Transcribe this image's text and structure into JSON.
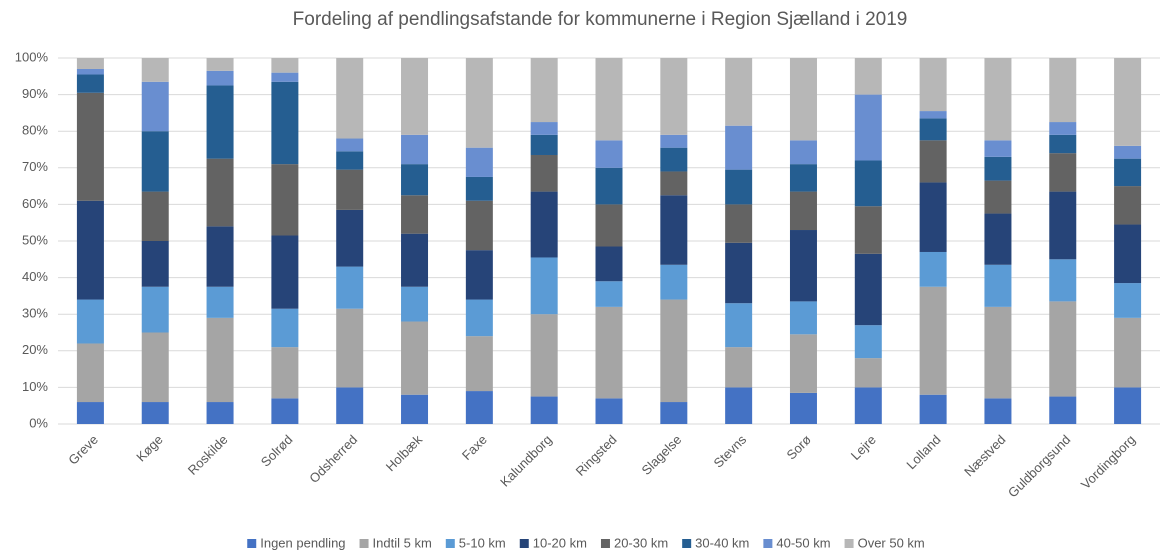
{
  "chart_data": {
    "type": "stacked_bar",
    "title": "Fordeling af pendlingsafstande for kommunerne i Region Sjælland i 2019",
    "categories": [
      "Greve",
      "Køge",
      "Roskilde",
      "Solrød",
      "Odsherred",
      "Holbæk",
      "Faxe",
      "Kalundborg",
      "Ringsted",
      "Slagelse",
      "Stevns",
      "Sorø",
      "Lejre",
      "Lolland",
      "Næstved",
      "Guldborgsund",
      "Vordingborg"
    ],
    "series": [
      {
        "name": "Ingen pendling",
        "color": "#4472c4",
        "values": [
          6,
          6,
          6,
          7,
          10,
          8,
          9,
          7.5,
          7,
          6,
          10,
          8.5,
          10,
          8,
          7,
          7.5,
          10
        ]
      },
      {
        "name": "Indtil 5 km",
        "color": "#a5a5a5",
        "values": [
          16,
          19,
          23,
          14,
          21.5,
          20,
          15,
          22.5,
          25,
          28,
          11,
          16,
          8,
          29.5,
          25,
          26,
          19
        ]
      },
      {
        "name": "5-10 km",
        "color": "#5b9bd5",
        "values": [
          12,
          12.5,
          8.5,
          10.5,
          11.5,
          9.5,
          10,
          15.5,
          7,
          9.5,
          12,
          9,
          9,
          9.5,
          11.5,
          11.5,
          9.5
        ]
      },
      {
        "name": "10-20 km",
        "color": "#264478",
        "values": [
          27,
          12.5,
          16.5,
          20,
          15.5,
          14.5,
          13.5,
          18,
          9.5,
          19,
          16.5,
          19.5,
          19.5,
          19,
          14,
          18.5,
          16
        ]
      },
      {
        "name": "20-30 km",
        "color": "#636363",
        "values": [
          29.5,
          13.5,
          18.5,
          19.5,
          11,
          10.5,
          13.5,
          10,
          11.5,
          6.5,
          10.5,
          10.5,
          13,
          11.5,
          9,
          10.5,
          10.5
        ]
      },
      {
        "name": "30-40 km",
        "color": "#255e91",
        "values": [
          5,
          16.5,
          20,
          22.5,
          5,
          8.5,
          6.5,
          5.5,
          10,
          6.5,
          9.5,
          7.5,
          12.5,
          6,
          6.5,
          5,
          7.5
        ]
      },
      {
        "name": "40-50 km",
        "color": "#698ed0",
        "values": [
          1.5,
          13.5,
          4,
          2.5,
          3.5,
          8,
          8,
          3.5,
          7.5,
          3.5,
          12,
          6.5,
          18,
          2,
          4.5,
          3.5,
          3.5
        ]
      },
      {
        "name": "Over 50 km",
        "color": "#b7b7b7",
        "values": [
          3,
          6.5,
          3.5,
          4,
          22,
          21,
          24.5,
          17.5,
          22.5,
          21,
          18.5,
          22.5,
          10,
          14.5,
          22.5,
          17.5,
          24
        ]
      }
    ],
    "ylim": [
      0,
      100
    ],
    "yticks": [
      {
        "value": 0,
        "label": "0%"
      },
      {
        "value": 10,
        "label": "10%"
      },
      {
        "value": 20,
        "label": "20%"
      },
      {
        "value": 30,
        "label": "30%"
      },
      {
        "value": 40,
        "label": "40%"
      },
      {
        "value": 50,
        "label": "50%"
      },
      {
        "value": 60,
        "label": "60%"
      },
      {
        "value": 70,
        "label": "70%"
      },
      {
        "value": 80,
        "label": "80%"
      },
      {
        "value": 90,
        "label": "90%"
      },
      {
        "value": 100,
        "label": "100%"
      }
    ],
    "grid": true,
    "legend": "bottom"
  }
}
